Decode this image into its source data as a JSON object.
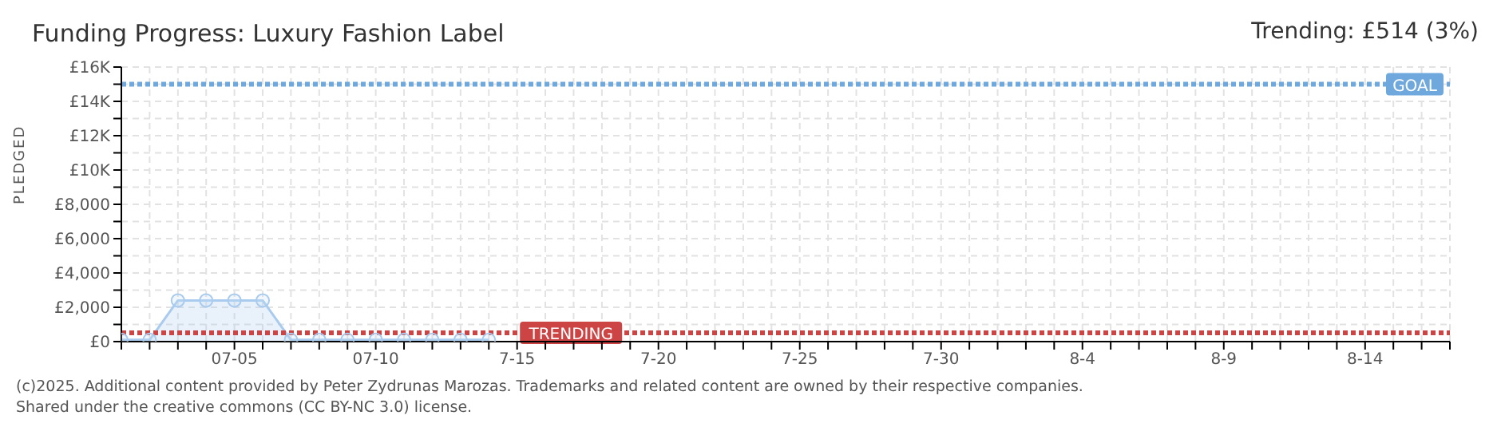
{
  "chart_data": {
    "type": "area",
    "title": "Funding Progress: Luxury Fashion Label",
    "annotations": [
      "Trending: £514 (3%)",
      "(c)2025. Additional content provided by Peter Zydrunas Marozas. Trademarks and related content are owned by their respective companies.",
      "Shared under the creative commons (CC BY-NC 3.0) license."
    ],
    "ylabel": "PLEDGED",
    "x": [
      "2025-07-01",
      "2025-07-02",
      "2025-07-03",
      "2025-07-04",
      "2025-07-05",
      "2025-07-06",
      "2025-07-07",
      "2025-07-08",
      "2025-07-09",
      "2025-07-10",
      "2025-07-11",
      "2025-07-12",
      "2025-07-13",
      "2025-07-14"
    ],
    "series": [
      {
        "color": "#a9cbee",
        "values": [
          100,
          100,
          2400,
          2400,
          2400,
          2400,
          100,
          100,
          100,
          100,
          100,
          100,
          100,
          100
        ]
      }
    ],
    "marker": "circle",
    "grid": true,
    "ylim": [
      0,
      16000
    ],
    "yticks": [
      {
        "value": 0,
        "label": "£0"
      },
      {
        "value": 1000,
        "label": null
      },
      {
        "value": 2000,
        "label": "£2,000"
      },
      {
        "value": 3000,
        "label": null
      },
      {
        "value": 4000,
        "label": "£4,000"
      },
      {
        "value": 5000,
        "label": null
      },
      {
        "value": 6000,
        "label": "£6,000"
      },
      {
        "value": 7000,
        "label": null
      },
      {
        "value": 8000,
        "label": "£8,000"
      },
      {
        "value": 9000,
        "label": null
      },
      {
        "value": 10000,
        "label": "£10K"
      },
      {
        "value": 11000,
        "label": null
      },
      {
        "value": 12000,
        "label": "£12K"
      },
      {
        "value": 13000,
        "label": null
      },
      {
        "value": 14000,
        "label": "£14K"
      },
      {
        "value": 15000,
        "label": null
      },
      {
        "value": 16000,
        "label": "£16K"
      }
    ],
    "xlim": [
      "2025-07-01",
      "2025-08-17"
    ],
    "xticks": [
      {
        "value": "2025-07-01",
        "label": null
      },
      {
        "value": "2025-07-02",
        "label": null
      },
      {
        "value": "2025-07-03",
        "label": null
      },
      {
        "value": "2025-07-04",
        "label": null
      },
      {
        "value": "2025-07-05",
        "label": "07-05"
      },
      {
        "value": "2025-07-06",
        "label": null
      },
      {
        "value": "2025-07-07",
        "label": null
      },
      {
        "value": "2025-07-08",
        "label": null
      },
      {
        "value": "2025-07-09",
        "label": null
      },
      {
        "value": "2025-07-10",
        "label": "07-10"
      },
      {
        "value": "2025-07-11",
        "label": null
      },
      {
        "value": "2025-07-12",
        "label": null
      },
      {
        "value": "2025-07-13",
        "label": null
      },
      {
        "value": "2025-07-14",
        "label": null
      },
      {
        "value": "2025-07-15",
        "label": "7-15"
      },
      {
        "value": "2025-07-16",
        "label": null
      },
      {
        "value": "2025-07-17",
        "label": null
      },
      {
        "value": "2025-07-18",
        "label": null
      },
      {
        "value": "2025-07-19",
        "label": null
      },
      {
        "value": "2025-07-20",
        "label": "7-20"
      },
      {
        "value": "2025-07-21",
        "label": null
      },
      {
        "value": "2025-07-22",
        "label": null
      },
      {
        "value": "2025-07-23",
        "label": null
      },
      {
        "value": "2025-07-24",
        "label": null
      },
      {
        "value": "2025-07-25",
        "label": "7-25"
      },
      {
        "value": "2025-07-26",
        "label": null
      },
      {
        "value": "2025-07-27",
        "label": null
      },
      {
        "value": "2025-07-28",
        "label": null
      },
      {
        "value": "2025-07-29",
        "label": null
      },
      {
        "value": "2025-07-30",
        "label": "7-30"
      },
      {
        "value": "2025-07-31",
        "label": null
      },
      {
        "value": "2025-08-01",
        "label": null
      },
      {
        "value": "2025-08-02",
        "label": null
      },
      {
        "value": "2025-08-03",
        "label": null
      },
      {
        "value": "2025-08-04",
        "label": "8-4"
      },
      {
        "value": "2025-08-05",
        "label": null
      },
      {
        "value": "2025-08-06",
        "label": null
      },
      {
        "value": "2025-08-07",
        "label": null
      },
      {
        "value": "2025-08-08",
        "label": null
      },
      {
        "value": "2025-08-09",
        "label": "8-9"
      },
      {
        "value": "2025-08-10",
        "label": null
      },
      {
        "value": "2025-08-11",
        "label": null
      },
      {
        "value": "2025-08-12",
        "label": null
      },
      {
        "value": "2025-08-13",
        "label": null
      },
      {
        "value": "2025-08-14",
        "label": "8-14"
      },
      {
        "value": "2025-08-15",
        "label": null
      },
      {
        "value": "2025-08-16",
        "label": null
      },
      {
        "value": "2025-08-17",
        "label": null
      }
    ],
    "ref_lines": [
      {
        "axis": "y",
        "value": 15000,
        "label": "GOAL",
        "color": "#6fa8dc",
        "line_style": "dotted"
      },
      {
        "axis": "y",
        "value": 514,
        "label": "TRENDING",
        "color": "#cc4444",
        "line_style": "dotted"
      }
    ]
  }
}
